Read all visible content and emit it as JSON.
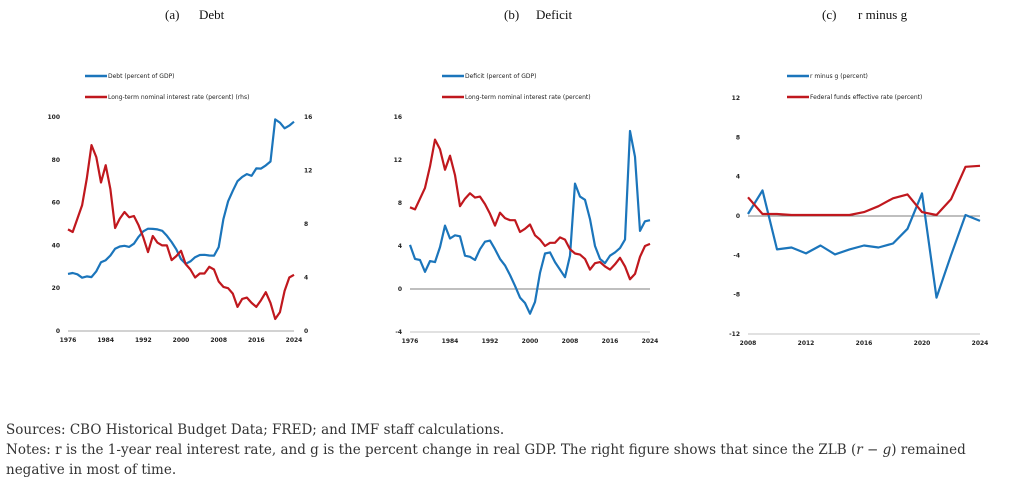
{
  "colors": {
    "blue": "#1b75bb",
    "red": "#c0181e",
    "axis": "#888888",
    "zero": "#7f7f7f"
  },
  "chart_data": [
    {
      "type": "line",
      "title_letter": "(a)",
      "title": "Debt",
      "x_ticks": [
        "1976",
        "1984",
        "1992",
        "2000",
        "2008",
        "2016",
        "2024"
      ],
      "y_ticks_left": [
        "0",
        "20",
        "40",
        "60",
        "80",
        "100"
      ],
      "y_ticks_right": [
        "0",
        "4",
        "8",
        "12",
        "16"
      ],
      "ylim": [
        0,
        100
      ],
      "ylim_right": [
        0,
        16
      ],
      "series": [
        {
          "name": "Debt (percent of GDP)",
          "color": "#1b75bb",
          "axis": "left",
          "x": [
            1976,
            1977,
            1978,
            1979,
            1980,
            1981,
            1982,
            1983,
            1984,
            1985,
            1986,
            1987,
            1988,
            1989,
            1990,
            1991,
            1992,
            1993,
            1994,
            1995,
            1996,
            1997,
            1998,
            1999,
            2000,
            2001,
            2002,
            2003,
            2004,
            2005,
            2006,
            2007,
            2008,
            2009,
            2010,
            2011,
            2012,
            2013,
            2014,
            2015,
            2016,
            2017,
            2018,
            2019,
            2020,
            2021,
            2022,
            2023,
            2024
          ],
          "y": [
            26.7,
            27.1,
            26.5,
            24.9,
            25.5,
            25.2,
            27.9,
            32.1,
            33.1,
            35.3,
            38.4,
            39.5,
            39.8,
            39.3,
            40.8,
            44.0,
            46.6,
            47.8,
            47.7,
            47.5,
            46.8,
            44.5,
            41.6,
            38.2,
            33.6,
            31.4,
            32.5,
            34.5,
            35.5,
            35.6,
            35.3,
            35.2,
            39.2,
            52.3,
            60.6,
            65.5,
            70.0,
            72.0,
            73.3,
            72.5,
            76.0,
            75.9,
            77.4,
            79.2,
            98.9,
            97.4,
            94.7,
            96.0,
            97.8
          ]
        },
        {
          "name": "Long-term nominal interest rate (percent) (rhs)",
          "color": "#c0181e",
          "axis": "right",
          "x": [
            1976,
            1977,
            1978,
            1979,
            1980,
            1981,
            1982,
            1983,
            1984,
            1985,
            1986,
            1987,
            1988,
            1989,
            1990,
            1991,
            1992,
            1993,
            1994,
            1995,
            1996,
            1997,
            1998,
            1999,
            2000,
            2001,
            2002,
            2003,
            2004,
            2005,
            2006,
            2007,
            2008,
            2009,
            2010,
            2011,
            2012,
            2013,
            2014,
            2015,
            2016,
            2017,
            2018,
            2019,
            2020,
            2021,
            2022,
            2023,
            2024
          ],
          "y": [
            7.6,
            7.4,
            8.4,
            9.4,
            11.4,
            13.9,
            13.0,
            11.1,
            12.4,
            10.6,
            7.7,
            8.4,
            8.9,
            8.5,
            8.6,
            7.9,
            7.0,
            5.9,
            7.1,
            6.6,
            6.4,
            6.4,
            5.3,
            5.6,
            6.0,
            5.0,
            4.6,
            4.0,
            4.3,
            4.3,
            4.8,
            4.6,
            3.7,
            3.3,
            3.2,
            2.8,
            1.8,
            2.4,
            2.5,
            2.1,
            1.8,
            2.3,
            2.9,
            2.1,
            0.9,
            1.4,
            3.0,
            4.0,
            4.2
          ]
        }
      ]
    },
    {
      "type": "line",
      "title_letter": "(b)",
      "title": "Deficit",
      "x_ticks": [
        "1976",
        "1984",
        "1992",
        "2000",
        "2008",
        "2016",
        "2024"
      ],
      "y_ticks_left": [
        "-4",
        "0",
        "4",
        "8",
        "12",
        "16"
      ],
      "ylim": [
        -4,
        16
      ],
      "series": [
        {
          "name": "Deficit (percent of GDP)",
          "color": "#1b75bb",
          "x": [
            1976,
            1977,
            1978,
            1979,
            1980,
            1981,
            1982,
            1983,
            1984,
            1985,
            1986,
            1987,
            1988,
            1989,
            1990,
            1991,
            1992,
            1993,
            1994,
            1995,
            1996,
            1997,
            1998,
            1999,
            2000,
            2001,
            2002,
            2003,
            2004,
            2005,
            2006,
            2007,
            2008,
            2009,
            2010,
            2011,
            2012,
            2013,
            2014,
            2015,
            2016,
            2017,
            2018,
            2019,
            2020,
            2021,
            2022,
            2023,
            2024
          ],
          "y": [
            4.1,
            2.8,
            2.7,
            1.6,
            2.6,
            2.5,
            3.9,
            5.9,
            4.7,
            5.0,
            4.9,
            3.1,
            3.0,
            2.7,
            3.7,
            4.4,
            4.5,
            3.7,
            2.8,
            2.2,
            1.3,
            0.3,
            -0.8,
            -1.3,
            -2.3,
            -1.2,
            1.5,
            3.3,
            3.4,
            2.5,
            1.8,
            1.1,
            3.1,
            9.8,
            8.6,
            8.3,
            6.5,
            4.0,
            2.8,
            2.4,
            3.1,
            3.4,
            3.8,
            4.6,
            14.7,
            12.3,
            5.4,
            6.3,
            6.4
          ]
        },
        {
          "name": "Long-term nominal interest rate (percent)",
          "color": "#c0181e",
          "x": [
            1976,
            1977,
            1978,
            1979,
            1980,
            1981,
            1982,
            1983,
            1984,
            1985,
            1986,
            1987,
            1988,
            1989,
            1990,
            1991,
            1992,
            1993,
            1994,
            1995,
            1996,
            1997,
            1998,
            1999,
            2000,
            2001,
            2002,
            2003,
            2004,
            2005,
            2006,
            2007,
            2008,
            2009,
            2010,
            2011,
            2012,
            2013,
            2014,
            2015,
            2016,
            2017,
            2018,
            2019,
            2020,
            2021,
            2022,
            2023,
            2024
          ],
          "y": [
            7.6,
            7.4,
            8.4,
            9.4,
            11.4,
            13.9,
            13.0,
            11.1,
            12.4,
            10.6,
            7.7,
            8.4,
            8.9,
            8.5,
            8.6,
            7.9,
            7.0,
            5.9,
            7.1,
            6.6,
            6.4,
            6.4,
            5.3,
            5.6,
            6.0,
            5.0,
            4.6,
            4.0,
            4.3,
            4.3,
            4.8,
            4.6,
            3.7,
            3.3,
            3.2,
            2.8,
            1.8,
            2.4,
            2.5,
            2.1,
            1.8,
            2.3,
            2.9,
            2.1,
            0.9,
            1.4,
            3.0,
            4.0,
            4.2
          ]
        }
      ]
    },
    {
      "type": "line",
      "title_letter": "(c)",
      "title": "r minus g",
      "x_ticks": [
        "2008",
        "2012",
        "2016",
        "2020",
        "2024"
      ],
      "y_ticks_left": [
        "-12",
        "-8",
        "-4",
        "0",
        "4",
        "8",
        "12"
      ],
      "ylim": [
        -12,
        12
      ],
      "series": [
        {
          "name": "r minus g (percent)",
          "color": "#1b75bb",
          "x": [
            2008,
            2009,
            2010,
            2011,
            2012,
            2013,
            2014,
            2015,
            2016,
            2017,
            2018,
            2019,
            2020,
            2021,
            2022,
            2023,
            2024
          ],
          "y": [
            0.2,
            2.6,
            -3.4,
            -3.2,
            -3.8,
            -3.0,
            -3.9,
            -3.4,
            -3.0,
            -3.2,
            -2.8,
            -1.3,
            2.3,
            -8.3,
            -4.0,
            0.1,
            -0.5
          ]
        },
        {
          "name": "Federal funds effective rate (percent)",
          "color": "#c0181e",
          "x": [
            2008,
            2009,
            2010,
            2011,
            2012,
            2013,
            2014,
            2015,
            2016,
            2017,
            2018,
            2019,
            2020,
            2021,
            2022,
            2023,
            2024
          ],
          "y": [
            1.9,
            0.2,
            0.2,
            0.1,
            0.1,
            0.1,
            0.1,
            0.1,
            0.4,
            1.0,
            1.8,
            2.2,
            0.4,
            0.1,
            1.7,
            5.0,
            5.1
          ]
        }
      ]
    }
  ],
  "notes": {
    "sources": "Sources: CBO Historical Budget Data; FRED; and IMF staff calculations.",
    "notes_lead": "Notes: r is the 1-year real interest rate, and g is the percent change in real GDP. The right figure shows that since the ZLB (",
    "notes_math": "r − g",
    "notes_tail": ") remained negative in most of time."
  }
}
